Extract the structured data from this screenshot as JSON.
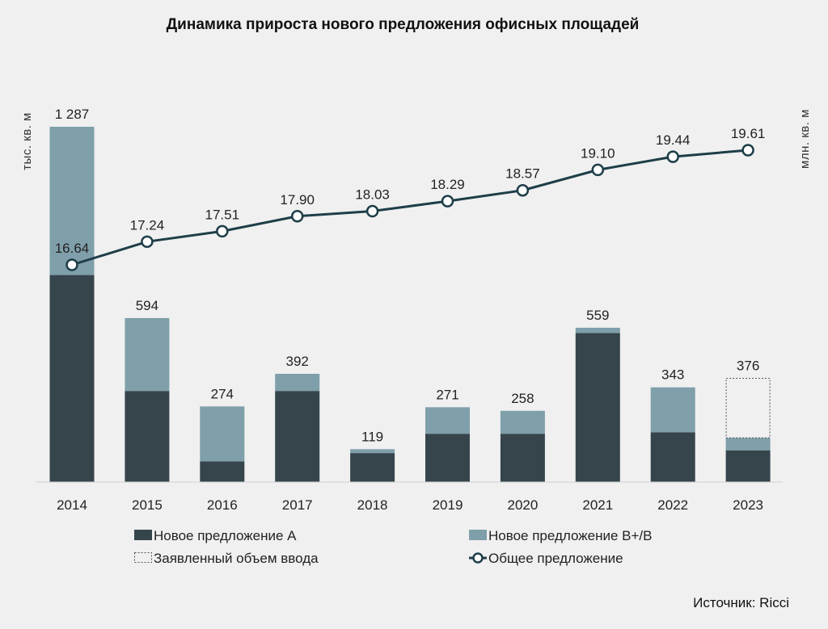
{
  "title": "Динамика прироста нового предложения офисных площадей",
  "source": "Источник: Ricci",
  "chart_data": {
    "type": "bar",
    "subtype": "stacked bar + line (dual axis)",
    "title": "Динамика прироста нового предложения офисных площадей",
    "categories": [
      "2014",
      "2015",
      "2016",
      "2017",
      "2018",
      "2019",
      "2020",
      "2021",
      "2022",
      "2023"
    ],
    "left_axis_label": "тыс. кв. м",
    "right_axis_label": "млн. кв. м",
    "ylim_left": [
      0,
      1300
    ],
    "ylim_right": [
      15,
      20
    ],
    "series": [
      {
        "name": "Новое предложение A",
        "type": "bar",
        "stack": "new",
        "axis": "left",
        "color": "#36454c",
        "values": [
          750,
          330,
          75,
          330,
          105,
          175,
          175,
          540,
          180,
          115
        ]
      },
      {
        "name": "Новое предложение B+/B",
        "type": "bar",
        "stack": "new",
        "axis": "left",
        "color": "#7f9faa",
        "values": [
          537,
          264,
          199,
          62,
          14,
          96,
          83,
          19,
          163,
          45
        ]
      },
      {
        "name": "Заявленный объем ввода",
        "type": "bar",
        "stack": "new",
        "axis": "left",
        "style": "dashed-outline",
        "values": [
          null,
          null,
          null,
          null,
          null,
          null,
          null,
          null,
          null,
          216
        ]
      },
      {
        "name": "Общее предложение",
        "type": "line",
        "axis": "right",
        "color": "#1e3e48",
        "values": [
          16.64,
          17.24,
          17.51,
          17.9,
          18.03,
          18.29,
          18.57,
          19.1,
          19.44,
          19.61
        ]
      }
    ],
    "bar_total_labels": [
      "1 287",
      "594",
      "274",
      "392",
      "119",
      "271",
      "258",
      "559",
      "343",
      "376"
    ],
    "line_labels": [
      "16.64",
      "17.24",
      "17.51",
      "17.90",
      "18.03",
      "18.29",
      "18.57",
      "19.10",
      "19.44",
      "19.61"
    ],
    "legend": {
      "placement": "bottom",
      "items": [
        {
          "label": "Новое предложение A",
          "marker": "solid-dark"
        },
        {
          "label": "Новое предложение B+/B",
          "marker": "solid-light"
        },
        {
          "label": "Заявленный объем ввода",
          "marker": "dashed-box"
        },
        {
          "label": "Общее предложение",
          "marker": "line-circle"
        }
      ]
    },
    "grid": false
  }
}
